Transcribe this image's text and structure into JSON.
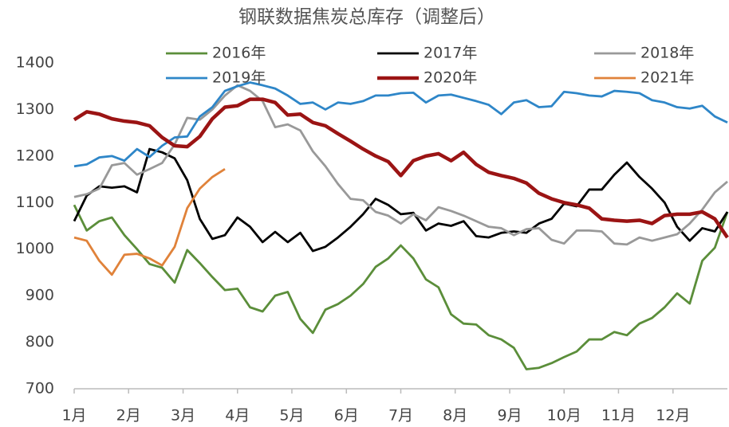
{
  "chart_data": {
    "type": "line",
    "title": "钢联数据焦炭总库存（调整后）",
    "x": [
      0,
      1,
      2,
      3,
      4,
      5,
      6,
      7,
      8,
      9,
      10,
      11,
      12,
      13,
      14,
      15,
      16,
      17,
      18,
      19,
      20,
      21,
      22,
      23,
      24,
      25,
      26,
      27,
      28,
      29,
      30,
      31,
      32,
      33,
      34,
      35,
      36,
      37,
      38,
      39,
      40,
      41,
      42,
      43,
      44,
      45,
      46,
      47,
      48,
      49,
      50,
      51,
      52
    ],
    "xlim": [
      0,
      52
    ],
    "xticks": [
      {
        "value": 0,
        "label": "1月"
      },
      {
        "value": 4.33,
        "label": "2月"
      },
      {
        "value": 8.67,
        "label": "3月"
      },
      {
        "value": 13,
        "label": "4月"
      },
      {
        "value": 17.33,
        "label": "5月"
      },
      {
        "value": 21.67,
        "label": "6月"
      },
      {
        "value": 26,
        "label": "7月"
      },
      {
        "value": 30.33,
        "label": "8月"
      },
      {
        "value": 34.67,
        "label": "9月"
      },
      {
        "value": 39,
        "label": "10月"
      },
      {
        "value": 43.33,
        "label": "11月"
      },
      {
        "value": 47.67,
        "label": "12月"
      }
    ],
    "ylim": [
      700,
      1400
    ],
    "yticks": [
      700,
      800,
      900,
      1000,
      1100,
      1200,
      1300,
      1400
    ],
    "grid": false,
    "series": [
      {
        "name": "2016年",
        "color": "#5b8e3a",
        "values": [
          1095,
          1040,
          1060,
          1068,
          1030,
          1000,
          968,
          960,
          928,
          998,
          970,
          940,
          912,
          915,
          875,
          866,
          900,
          908,
          850,
          820,
          870,
          882,
          900,
          925,
          962,
          980,
          1008,
          980,
          935,
          918,
          860,
          840,
          838,
          815,
          806,
          788,
          742,
          745,
          755,
          768,
          780,
          806,
          806,
          822,
          815,
          840,
          852,
          875,
          905,
          883,
          975,
          1003,
          1080
        ]
      },
      {
        "name": "2017年",
        "color": "#000000",
        "values": [
          1060,
          1115,
          1135,
          1132,
          1135,
          1122,
          1215,
          1208,
          1195,
          1148,
          1065,
          1022,
          1030,
          1068,
          1048,
          1015,
          1037,
          1015,
          1035,
          996,
          1005,
          1025,
          1048,
          1075,
          1108,
          1095,
          1075,
          1078,
          1040,
          1055,
          1050,
          1060,
          1028,
          1025,
          1035,
          1038,
          1035,
          1055,
          1065,
          1098,
          1092,
          1128,
          1128,
          1160,
          1186,
          1155,
          1130,
          1100,
          1048,
          1018,
          1045,
          1038,
          1080
        ]
      },
      {
        "name": "2018年",
        "color": "#999999",
        "values": [
          1112,
          1118,
          1130,
          1180,
          1185,
          1160,
          1172,
          1185,
          1225,
          1282,
          1278,
          1300,
          1330,
          1352,
          1340,
          1318,
          1262,
          1268,
          1255,
          1210,
          1178,
          1140,
          1108,
          1105,
          1080,
          1072,
          1055,
          1075,
          1062,
          1090,
          1082,
          1072,
          1060,
          1048,
          1045,
          1030,
          1043,
          1045,
          1020,
          1012,
          1040,
          1040,
          1038,
          1012,
          1010,
          1025,
          1018,
          1025,
          1032,
          1055,
          1085,
          1122,
          1145
        ]
      },
      {
        "name": "2019年",
        "color": "#2e86c8",
        "values": [
          1178,
          1182,
          1197,
          1200,
          1190,
          1215,
          1198,
          1222,
          1240,
          1242,
          1285,
          1305,
          1340,
          1350,
          1358,
          1352,
          1345,
          1330,
          1312,
          1315,
          1300,
          1315,
          1312,
          1318,
          1330,
          1330,
          1335,
          1336,
          1315,
          1330,
          1332,
          1325,
          1318,
          1310,
          1290,
          1315,
          1320,
          1305,
          1307,
          1338,
          1335,
          1330,
          1328,
          1340,
          1338,
          1335,
          1320,
          1315,
          1305,
          1302,
          1308,
          1285,
          1272
        ]
      },
      {
        "name": "2020年",
        "color": "#9b1414",
        "values": [
          1278,
          1295,
          1290,
          1280,
          1275,
          1272,
          1265,
          1240,
          1222,
          1220,
          1242,
          1280,
          1305,
          1308,
          1322,
          1322,
          1315,
          1288,
          1290,
          1272,
          1265,
          1248,
          1232,
          1215,
          1200,
          1188,
          1158,
          1190,
          1200,
          1205,
          1190,
          1208,
          1182,
          1165,
          1158,
          1152,
          1142,
          1120,
          1108,
          1100,
          1095,
          1088,
          1065,
          1062,
          1060,
          1062,
          1055,
          1072,
          1075,
          1075,
          1080,
          1065,
          1025
        ]
      },
      {
        "name": "2021年",
        "color": "#e0823a",
        "values": [
          1025,
          1018,
          975,
          945,
          988,
          990,
          980,
          965,
          1005,
          1088,
          1130,
          1155,
          1172,
          null,
          null,
          null,
          null,
          null,
          null,
          null,
          null,
          null,
          null,
          null,
          null,
          null,
          null,
          null,
          null,
          null,
          null,
          null,
          null,
          null,
          null,
          null,
          null,
          null,
          null,
          null,
          null,
          null,
          null,
          null,
          null,
          null,
          null,
          null,
          null,
          null,
          null,
          null,
          null
        ]
      }
    ]
  }
}
